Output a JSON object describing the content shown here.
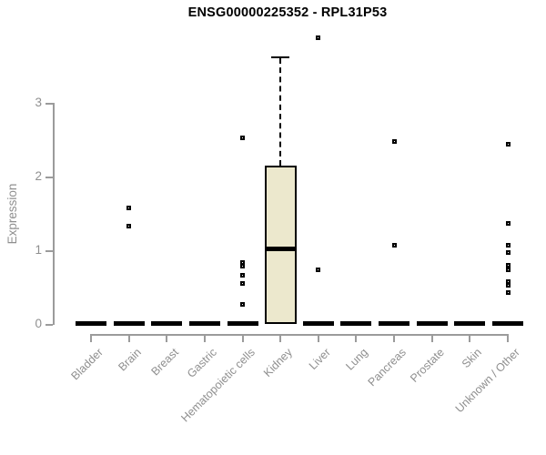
{
  "chart_data": {
    "type": "boxplot",
    "title": "ENSG00000225352 - RPL31P53",
    "ylabel": "Expression",
    "xlabel": "",
    "yticks": [
      0,
      1,
      2,
      3
    ],
    "ylim": [
      -0.14,
      4.0
    ],
    "grid": false,
    "legend": "none",
    "categories": [
      "Bladder",
      "Brain",
      "Breast",
      "Gastric",
      "Hematopoietic cells",
      "Kidney",
      "Liver",
      "Lung",
      "Pancreas",
      "Prostate",
      "Skin",
      "Unknown / Other"
    ],
    "series": [
      {
        "name": "Bladder",
        "q1": 0,
        "median": 0,
        "q3": 0,
        "whisker_low": 0,
        "whisker_high": 0,
        "outliers": []
      },
      {
        "name": "Brain",
        "q1": 0,
        "median": 0,
        "q3": 0,
        "whisker_low": 0,
        "whisker_high": 0,
        "outliers": [
          1.57,
          1.33
        ]
      },
      {
        "name": "Breast",
        "q1": 0,
        "median": 0,
        "q3": 0,
        "whisker_low": 0,
        "whisker_high": 0,
        "outliers": []
      },
      {
        "name": "Gastric",
        "q1": 0,
        "median": 0,
        "q3": 0,
        "whisker_low": 0,
        "whisker_high": 0,
        "outliers": []
      },
      {
        "name": "Hematopoietic cells",
        "q1": 0,
        "median": 0,
        "q3": 0,
        "whisker_low": 0,
        "whisker_high": 0,
        "outliers": [
          2.52,
          0.83,
          0.78,
          0.66,
          0.55,
          0.27
        ]
      },
      {
        "name": "Kidney",
        "q1": 0,
        "median": 1.02,
        "q3": 2.15,
        "whisker_low": 0,
        "whisker_high": 3.63,
        "outliers": []
      },
      {
        "name": "Liver",
        "q1": 0,
        "median": 0,
        "q3": 0,
        "whisker_low": 0,
        "whisker_high": 0,
        "outliers": [
          3.88,
          0.74
        ]
      },
      {
        "name": "Lung",
        "q1": 0,
        "median": 0,
        "q3": 0,
        "whisker_low": 0,
        "whisker_high": 0,
        "outliers": []
      },
      {
        "name": "Pancreas",
        "q1": 0,
        "median": 0,
        "q3": 0,
        "whisker_low": 0,
        "whisker_high": 0,
        "outliers": [
          2.47,
          1.07
        ]
      },
      {
        "name": "Prostate",
        "q1": 0,
        "median": 0,
        "q3": 0,
        "whisker_low": 0,
        "whisker_high": 0,
        "outliers": []
      },
      {
        "name": "Skin",
        "q1": 0,
        "median": 0,
        "q3": 0,
        "whisker_low": 0,
        "whisker_high": 0,
        "outliers": []
      },
      {
        "name": "Unknown / Other",
        "q1": 0,
        "median": 0,
        "q3": 0,
        "whisker_low": 0,
        "whisker_high": 0,
        "outliers": [
          2.44,
          1.37,
          1.07,
          0.97,
          0.8,
          0.74,
          0.58,
          0.52,
          0.43
        ]
      }
    ],
    "colors": {
      "box_fill": "#ece8cd",
      "box_border": "#000000",
      "median": "#000000",
      "outlier": "#000000",
      "axis_line": "#9b9b9b",
      "axis_text": "#8f8f8f",
      "title_text": "#000000"
    }
  }
}
